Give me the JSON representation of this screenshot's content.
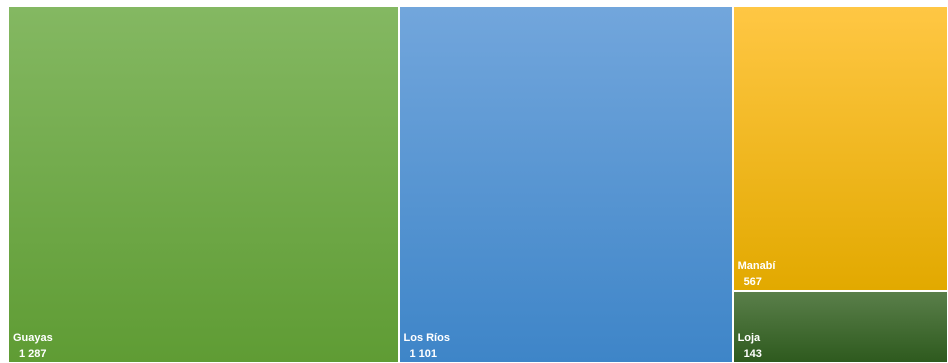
{
  "chart_data": {
    "type": "treemap",
    "items": [
      {
        "name": "Guayas",
        "label": "Guayas",
        "value": 1287,
        "value_label": "1 287",
        "color_top": "#84b862",
        "color_bottom": "#5f9c34"
      },
      {
        "name": "Los Ríos",
        "label": "Los Ríos",
        "value": 1101,
        "value_label": "1 101",
        "color_top": "#72a6dc",
        "color_bottom": "#3e85c8"
      },
      {
        "name": "Manabí",
        "label": "Manabí",
        "value": 567,
        "value_label": "567",
        "color_top": "#ffc744",
        "color_bottom": "#e2a900"
      },
      {
        "name": "Loja",
        "label": "Loja",
        "value": 143,
        "value_label": "143",
        "color_top": "#5a7f4a",
        "color_bottom": "#2e5a1e"
      }
    ]
  }
}
